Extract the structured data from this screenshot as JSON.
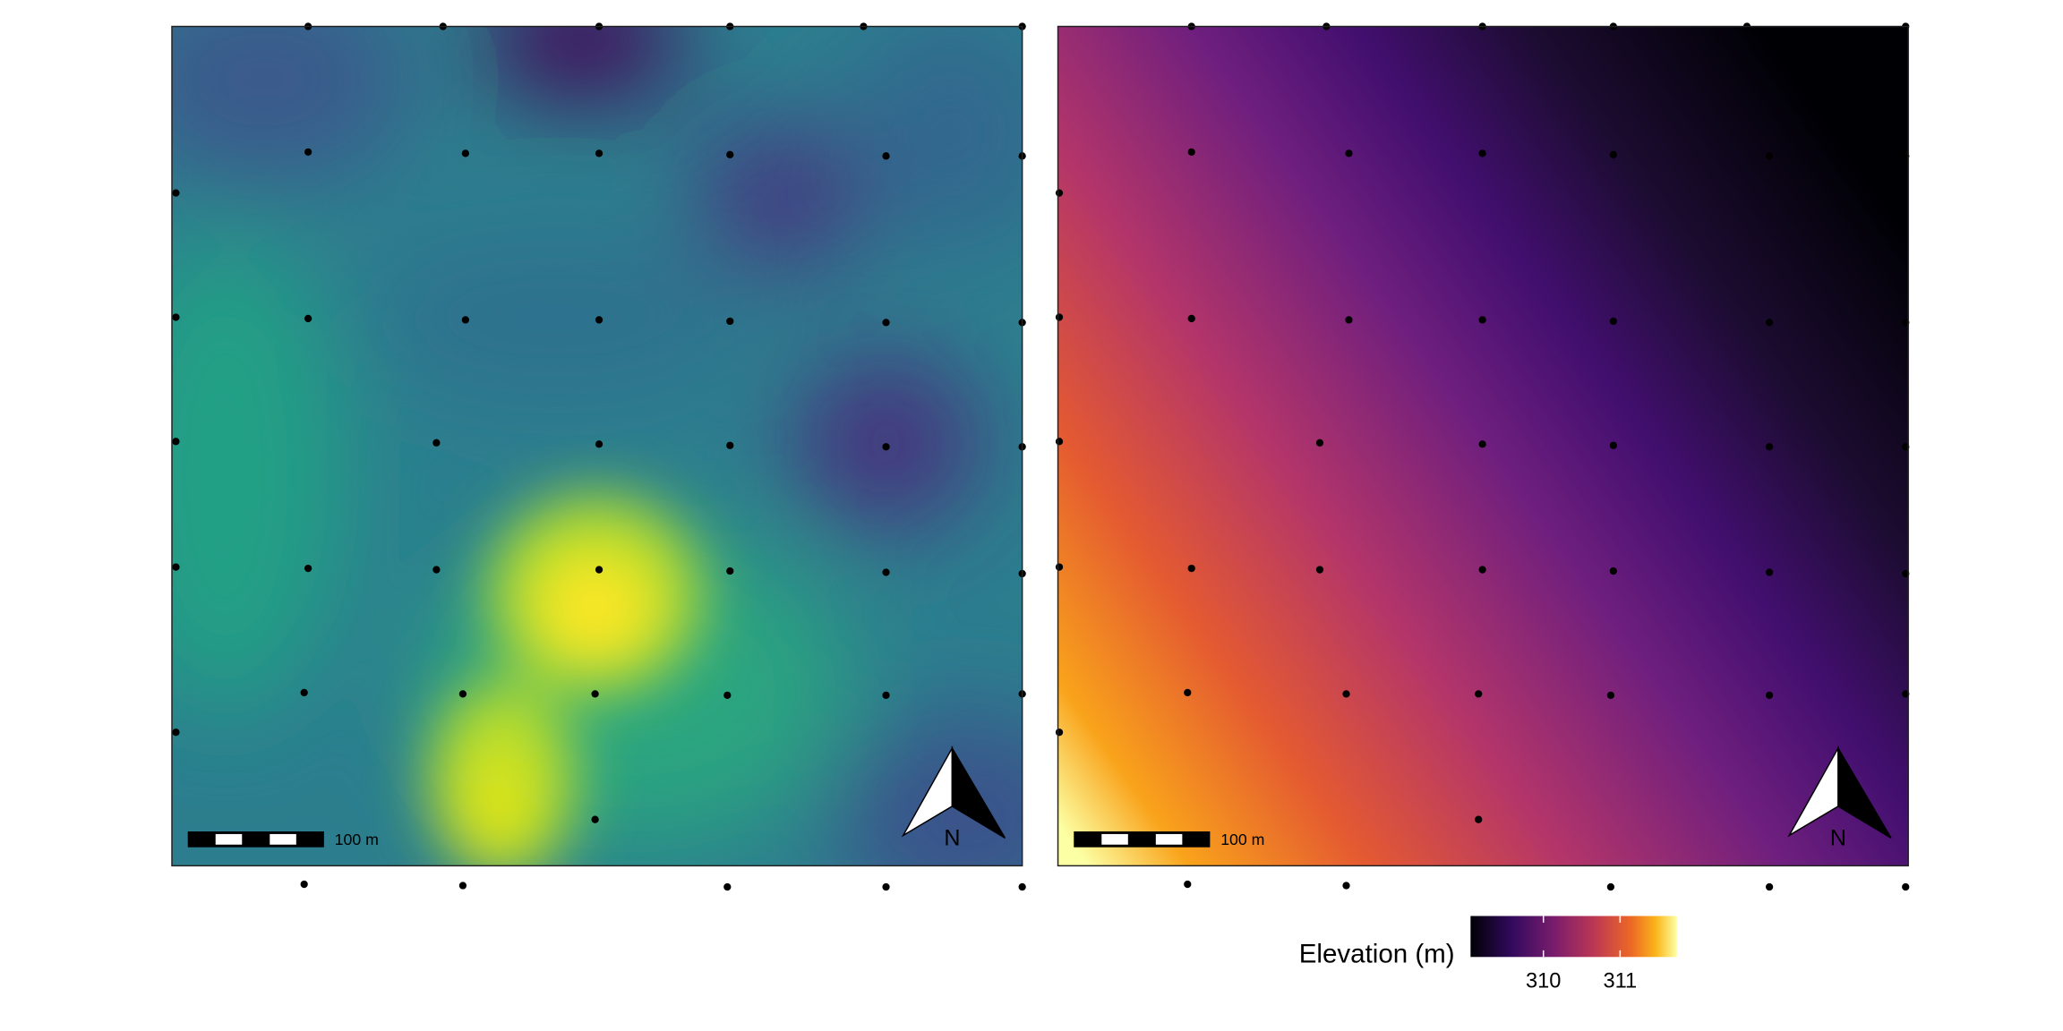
{
  "panels": [
    {
      "scalebar_label": "100 m",
      "north_label": "N"
    },
    {
      "scalebar_label": "100 m",
      "north_label": "N"
    }
  ],
  "legend": {
    "title": "Elevation (m)",
    "lim": [
      309.05,
      311.74
    ],
    "ticks": [
      310,
      311
    ]
  }
}
